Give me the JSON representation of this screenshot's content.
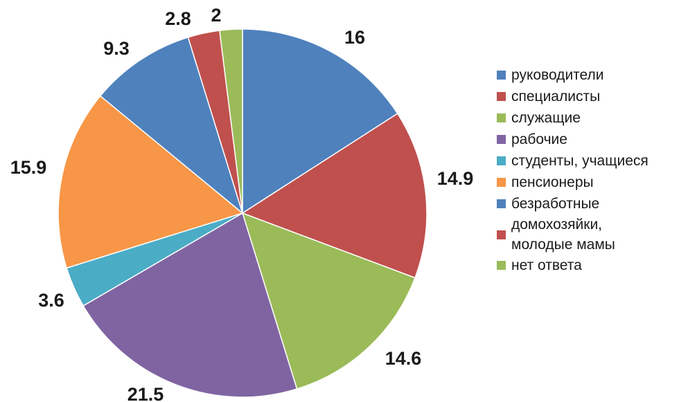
{
  "chart_data": {
    "type": "pie",
    "start_angle_deg": 0,
    "direction": "clockwise",
    "slices": [
      {
        "label": "руководители",
        "value": 16,
        "value_label": "16",
        "color": "#4F81BD"
      },
      {
        "label": "специалисты",
        "value": 14.9,
        "value_label": "14.9",
        "color": "#C0504D"
      },
      {
        "label": "служащие",
        "value": 14.6,
        "value_label": "14.6",
        "color": "#9BBB59"
      },
      {
        "label": "рабочие",
        "value": 21.5,
        "value_label": "21.5",
        "color": "#8064A2"
      },
      {
        "label": "студенты, учащиеся",
        "value": 3.6,
        "value_label": "3.6",
        "color": "#4BACC6"
      },
      {
        "label": "пенсионеры",
        "value": 15.9,
        "value_label": "15.9",
        "color": "#F79646"
      },
      {
        "label": "безработные",
        "value": 9.3,
        "value_label": "9.3",
        "color": "#4F81BD"
      },
      {
        "label": "домохозяйки,\nмолодые мамы",
        "value": 2.8,
        "value_label": "2.8",
        "color": "#C0504D"
      },
      {
        "label": "нет ответа",
        "value": 2,
        "value_label": "2",
        "color": "#9BBB59"
      }
    ],
    "legend_position": "right"
  }
}
